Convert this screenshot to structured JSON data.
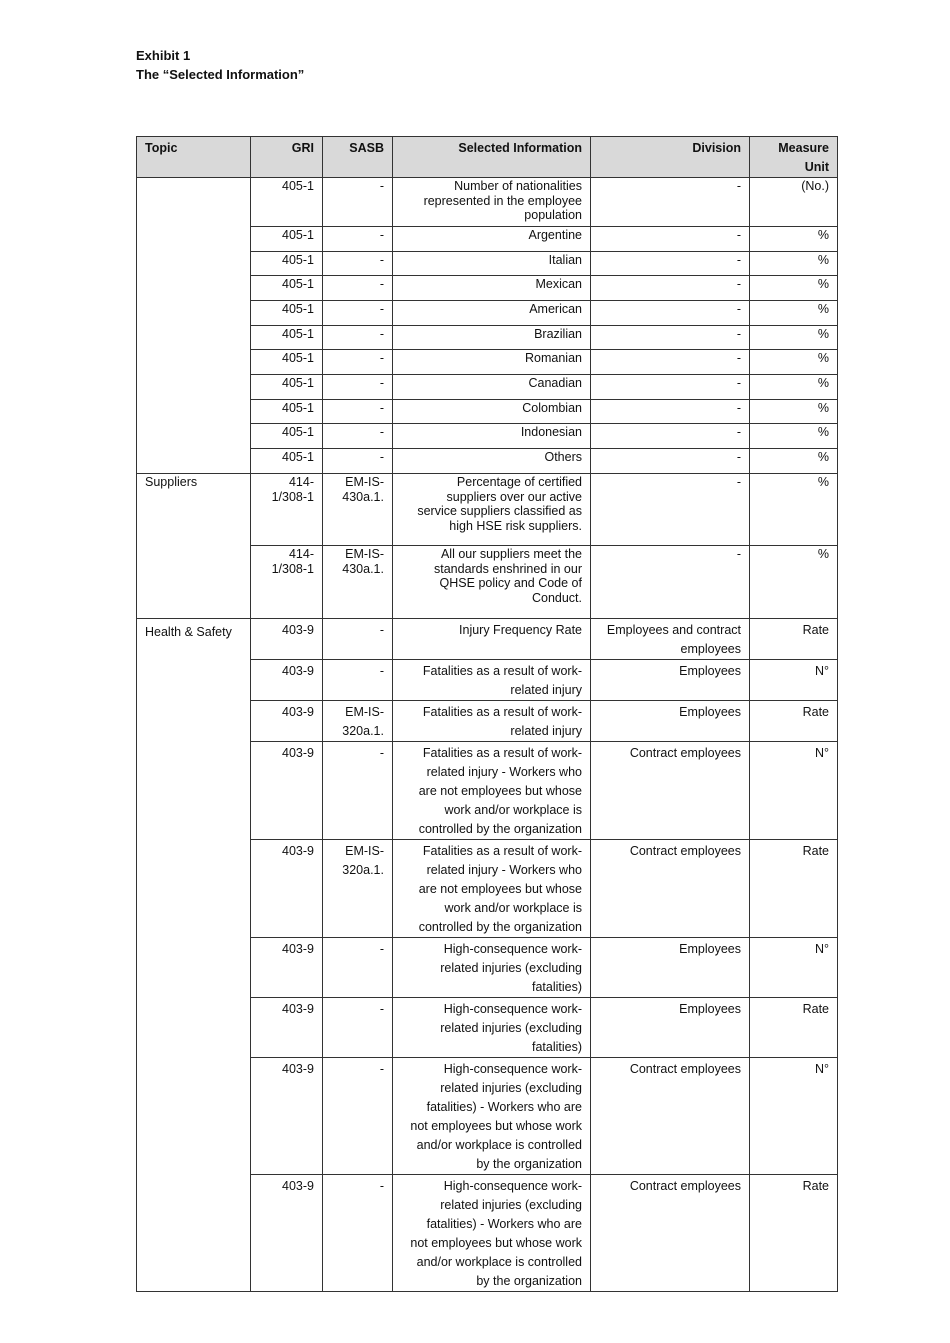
{
  "heading": {
    "exhibit": "Exhibit 1",
    "title": "The “Selected Information”"
  },
  "columns": [
    "Topic",
    "GRI",
    "SASB",
    "Selected Information",
    "Division",
    "Measure\nUnit"
  ],
  "groups": [
    {
      "topic": "",
      "rows": [
        {
          "gri": "405-1",
          "sasb": "-",
          "info": "Number of nationalities\nrepresented in the employee\npopulation",
          "division": "-",
          "unit": "(No.)"
        },
        {
          "gri": "405-1",
          "sasb": "-",
          "info": "Argentine",
          "division": "-",
          "unit": "%"
        },
        {
          "gri": "405-1",
          "sasb": "-",
          "info": "Italian",
          "division": "-",
          "unit": "%"
        },
        {
          "gri": "405-1",
          "sasb": "-",
          "info": "Mexican",
          "division": "-",
          "unit": "%"
        },
        {
          "gri": "405-1",
          "sasb": "-",
          "info": "American",
          "division": "-",
          "unit": "%"
        },
        {
          "gri": "405-1",
          "sasb": "-",
          "info": "Brazilian",
          "division": "-",
          "unit": "%"
        },
        {
          "gri": "405-1",
          "sasb": "-",
          "info": "Romanian",
          "division": "-",
          "unit": "%"
        },
        {
          "gri": "405-1",
          "sasb": "-",
          "info": "Canadian",
          "division": "-",
          "unit": "%"
        },
        {
          "gri": "405-1",
          "sasb": "-",
          "info": "Colombian",
          "division": "-",
          "unit": "%"
        },
        {
          "gri": "405-1",
          "sasb": "-",
          "info": "Indonesian",
          "division": "-",
          "unit": "%"
        },
        {
          "gri": "405-1",
          "sasb": "-",
          "info": "Others",
          "division": "-",
          "unit": "%"
        }
      ]
    },
    {
      "topic": "Suppliers",
      "rows": [
        {
          "gri": "414-\n1/308-1",
          "sasb": "EM-IS-\n430a.1.",
          "info": "Percentage of certified\nsuppliers over our active\nservice suppliers classified as\nhigh HSE risk suppliers.",
          "division": "-",
          "unit": "%"
        },
        {
          "gri": "414-\n1/308-1",
          "sasb": "EM-IS-\n430a.1.",
          "info": "All our suppliers meet the\nstandards enshrined in our\nQHSE policy and Code of\nConduct.",
          "division": "-",
          "unit": "%"
        }
      ]
    },
    {
      "topic": "Health & Safety",
      "rows": [
        {
          "gri": "403-9",
          "sasb": "-",
          "info": "Injury Frequency Rate",
          "division": "Employees and contract\nemployees",
          "unit": "Rate"
        },
        {
          "gri": "403-9",
          "sasb": "-",
          "info": "Fatalities as a result of work-\nrelated injury",
          "division": "Employees",
          "unit": "N°"
        },
        {
          "gri": "403-9",
          "sasb": "EM-IS-\n320a.1.",
          "info": "Fatalities as a result of work-\nrelated injury",
          "division": "Employees",
          "unit": "Rate"
        },
        {
          "gri": "403-9",
          "sasb": "-",
          "info": "Fatalities as a result of work-\nrelated injury - Workers who\nare not employees but whose\nwork and/or workplace is\ncontrolled by the organization",
          "division": "Contract employees",
          "unit": "N°"
        },
        {
          "gri": "403-9",
          "sasb": "EM-IS-\n320a.1.",
          "info": "Fatalities as a result of work-\nrelated injury - Workers who\nare not employees but whose\nwork and/or workplace is\ncontrolled by the organization",
          "division": "Contract employees",
          "unit": "Rate"
        },
        {
          "gri": "403-9",
          "sasb": "-",
          "info": "High-consequence work-\nrelated injuries (excluding\nfatalities)",
          "division": "Employees",
          "unit": "N°"
        },
        {
          "gri": "403-9",
          "sasb": "-",
          "info": "High-consequence work-\nrelated injuries (excluding\nfatalities)",
          "division": "Employees",
          "unit": "Rate"
        },
        {
          "gri": "403-9",
          "sasb": "-",
          "info": "High-consequence work-\nrelated injuries (excluding\nfatalities) - Workers who are\nnot employees but whose work\nand/or workplace is controlled\nby the organization",
          "division": "Contract employees",
          "unit": "N°"
        },
        {
          "gri": "403-9",
          "sasb": "-",
          "info": "High-consequence work-\nrelated injuries (excluding\nfatalities) - Workers who are\nnot employees but whose work\nand/or workplace is controlled\nby the organization",
          "division": "Contract employees",
          "unit": "Rate"
        }
      ]
    }
  ]
}
